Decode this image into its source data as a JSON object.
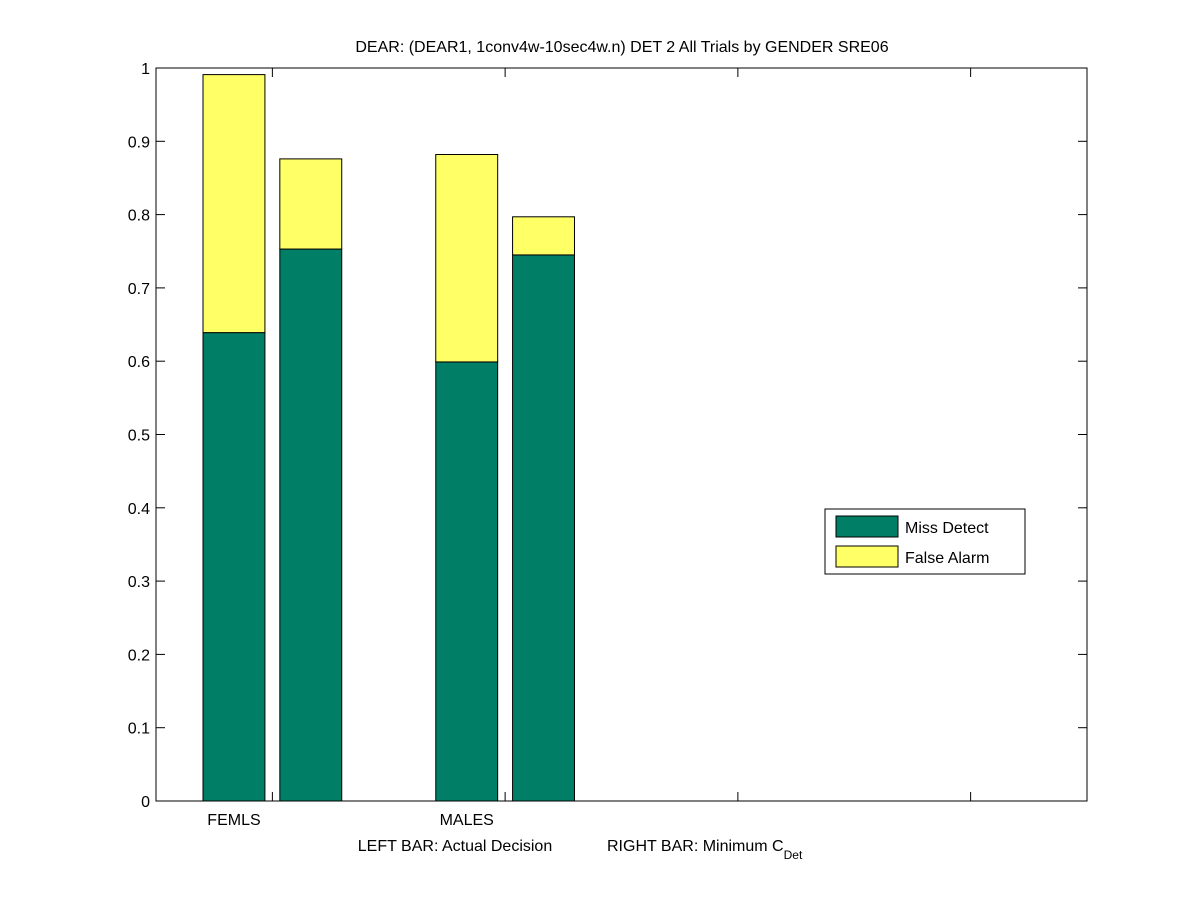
{
  "chart_data": {
    "type": "bar",
    "stacked": true,
    "title": "DEAR: (DEAR1, 1conv4w-10sec4w.n) DET 2 All Trials by GENDER SRE06",
    "xlabel": {
      "left": "LEFT BAR: Actual Decision",
      "right_prefix": "RIGHT BAR: Minimum C",
      "right_subscript": "Det"
    },
    "ylabel": "",
    "ylim": [
      0,
      1
    ],
    "yticks": [
      "0",
      "0.1",
      "0.2",
      "0.3",
      "0.4",
      "0.5",
      "0.6",
      "0.7",
      "0.8",
      "0.9",
      "1"
    ],
    "categories": [
      "FEMLS",
      "MALES"
    ],
    "bars": [
      {
        "category": "FEMLS",
        "kind": "actual",
        "miss": 0.639,
        "false_alarm": 0.352
      },
      {
        "category": "FEMLS",
        "kind": "minimum",
        "miss": 0.753,
        "false_alarm": 0.123
      },
      {
        "category": "MALES",
        "kind": "actual",
        "miss": 0.599,
        "false_alarm": 0.283
      },
      {
        "category": "MALES",
        "kind": "minimum",
        "miss": 0.745,
        "false_alarm": 0.052
      }
    ],
    "series": [
      {
        "name": "Miss Detect",
        "color": "#007f66"
      },
      {
        "name": "False Alarm",
        "color": "#ffff66"
      }
    ],
    "legend": "center-right",
    "grid": false
  }
}
